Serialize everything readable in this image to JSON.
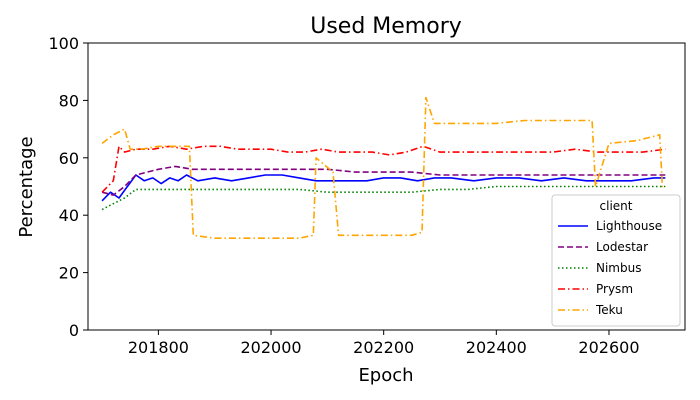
{
  "chart_data": {
    "type": "line",
    "title": "Used Memory",
    "xlabel": "Epoch",
    "ylabel": "Percentage",
    "xlim": [
      201675,
      202735
    ],
    "ylim": [
      0,
      100
    ],
    "xticks": [
      201800,
      202000,
      202200,
      202400,
      202600
    ],
    "yticks": [
      0,
      20,
      40,
      60,
      80,
      100
    ],
    "grid": false,
    "legend": {
      "title": "client",
      "placement": "lower-right"
    },
    "series": [
      {
        "name": "Lighthouse",
        "color": "#0000ff",
        "dash": "solid",
        "x": [
          201700,
          201715,
          201730,
          201745,
          201760,
          201775,
          201790,
          201805,
          201820,
          201835,
          201850,
          201870,
          201900,
          201930,
          201960,
          201990,
          202020,
          202050,
          202080,
          202110,
          202140,
          202170,
          202200,
          202230,
          202260,
          202290,
          202320,
          202360,
          202400,
          202440,
          202480,
          202520,
          202560,
          202600,
          202640,
          202680,
          202700
        ],
        "y": [
          45,
          48,
          46,
          50,
          54,
          52,
          53,
          51,
          53,
          52,
          54,
          52,
          53,
          52,
          53,
          54,
          54,
          53,
          52,
          52,
          52,
          52,
          53,
          53,
          52,
          53,
          53,
          52,
          53,
          53,
          52,
          53,
          52,
          52,
          52,
          53,
          53
        ]
      },
      {
        "name": "Lodestar",
        "color": "#800080",
        "dash": "dashed",
        "x": [
          201700,
          201720,
          201740,
          201760,
          201780,
          201800,
          201830,
          201860,
          201900,
          201950,
          202000,
          202050,
          202100,
          202150,
          202200,
          202250,
          202300,
          202350,
          202400,
          202450,
          202500,
          202550,
          202600,
          202650,
          202700
        ],
        "y": [
          48,
          47,
          50,
          54,
          55,
          56,
          57,
          56,
          56,
          56,
          56,
          56,
          56,
          55,
          55,
          55,
          54,
          54,
          54,
          54,
          54,
          54,
          54,
          54,
          54
        ]
      },
      {
        "name": "Nimbus",
        "color": "#008000",
        "dash": "dotted",
        "x": [
          201700,
          201720,
          201740,
          201760,
          201780,
          201800,
          201830,
          201860,
          201900,
          201950,
          202000,
          202050,
          202100,
          202150,
          202200,
          202250,
          202300,
          202350,
          202400,
          202450,
          202500,
          202550,
          202600,
          202650,
          202700
        ],
        "y": [
          42,
          44,
          46,
          49,
          49,
          49,
          49,
          49,
          49,
          49,
          49,
          49,
          48,
          48,
          48,
          48,
          49,
          49,
          50,
          50,
          50,
          50,
          50,
          50,
          50
        ]
      },
      {
        "name": "Prysm",
        "color": "#ff0000",
        "dash": "dashdot",
        "x": [
          201700,
          201710,
          201720,
          201730,
          201740,
          201760,
          201790,
          201820,
          201850,
          201880,
          201910,
          201940,
          201970,
          202000,
          202030,
          202060,
          202090,
          202120,
          202150,
          202180,
          202210,
          202240,
          202270,
          202300,
          202340,
          202380,
          202420,
          202460,
          202500,
          202540,
          202580,
          202620,
          202660,
          202700
        ],
        "y": [
          48,
          50,
          52,
          64,
          62,
          63,
          63,
          64,
          63,
          64,
          64,
          63,
          63,
          63,
          62,
          62,
          63,
          62,
          62,
          62,
          61,
          62,
          64,
          62,
          62,
          62,
          62,
          62,
          62,
          63,
          62,
          62,
          62,
          63
        ]
      },
      {
        "name": "Teku",
        "color": "#ffa500",
        "dash": "dashdot",
        "x": [
          201700,
          201720,
          201740,
          201750,
          201770,
          201800,
          201830,
          201855,
          201862,
          201900,
          201950,
          202000,
          202050,
          202075,
          202080,
          202110,
          202120,
          202150,
          202200,
          202250,
          202268,
          202275,
          202290,
          202350,
          202400,
          202450,
          202500,
          202560,
          202570,
          202576,
          202600,
          202650,
          202690,
          202695
        ],
        "y": [
          65,
          68,
          70,
          63,
          63,
          64,
          64,
          64,
          33,
          32,
          32,
          32,
          32,
          33,
          60,
          55,
          33,
          33,
          33,
          33,
          34,
          81,
          72,
          72,
          72,
          73,
          73,
          73,
          73,
          50,
          65,
          66,
          68,
          49
        ]
      }
    ]
  }
}
